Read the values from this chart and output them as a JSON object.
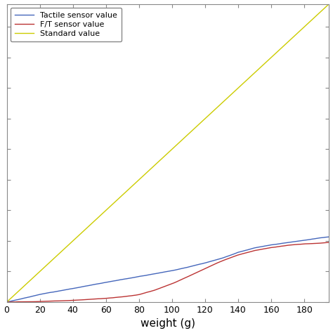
{
  "title": "",
  "xlabel": "weight (g)",
  "ylabel": "",
  "xlim": [
    0,
    195
  ],
  "ylim": [
    0,
    195
  ],
  "xticks": [
    0,
    20,
    40,
    60,
    80,
    100,
    120,
    140,
    160,
    180
  ],
  "legend_labels": [
    "Tactile sensor value",
    "F/T sensor value",
    "Standard value"
  ],
  "tactile_color": "#4466BB",
  "ft_color": "#BB3333",
  "standard_color": "#CCCC00",
  "background_color": "#ffffff",
  "x_max": 195,
  "standard_slope": 1.0,
  "x_pts_t": [
    0,
    10,
    20,
    30,
    40,
    50,
    60,
    70,
    80,
    90,
    100,
    110,
    120,
    130,
    140,
    150,
    160,
    170,
    180,
    190,
    195
  ],
  "y_pts_t": [
    0,
    2.5,
    5,
    7,
    9,
    11,
    13,
    15,
    17,
    19,
    21,
    23.5,
    26,
    29,
    33,
    36,
    38,
    39.5,
    41,
    42.5,
    43
  ],
  "x_pts_f": [
    0,
    10,
    20,
    30,
    40,
    50,
    60,
    70,
    80,
    90,
    100,
    110,
    120,
    130,
    140,
    150,
    160,
    170,
    180,
    190,
    195
  ],
  "y_pts_f": [
    0,
    0.2,
    0.5,
    0.8,
    1.2,
    1.8,
    2.5,
    3.5,
    5,
    8,
    12,
    17,
    22,
    27,
    31,
    34,
    36,
    37.5,
    38.5,
    39,
    39.5
  ]
}
